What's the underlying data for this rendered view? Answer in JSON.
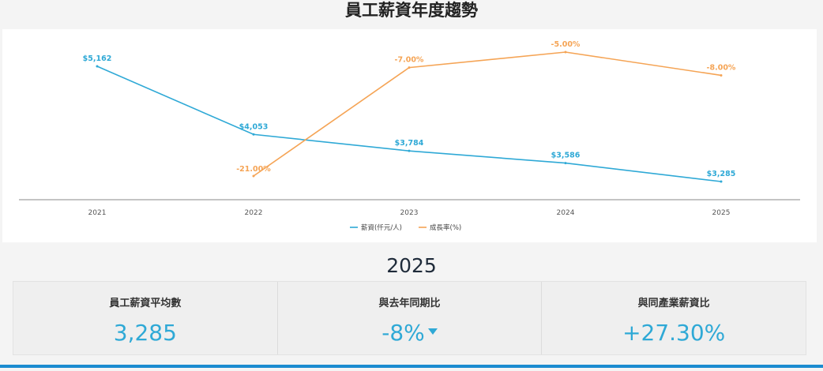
{
  "page": {
    "title": "員工薪資年度趨勢",
    "year": "2025"
  },
  "chart_data": {
    "type": "line",
    "categories": [
      "2021",
      "2022",
      "2023",
      "2024",
      "2025"
    ],
    "series": [
      {
        "name": "薪資(仟元/人)",
        "color": "#2fa9d6",
        "values": [
          5162,
          4053,
          3784,
          3586,
          3285
        ],
        "labels": [
          "$5,162",
          "$4,053",
          "$3,784",
          "$3,586",
          "$3,285"
        ]
      },
      {
        "name": "成長率(%)",
        "color": "#f5a455",
        "values": [
          null,
          -21.0,
          -7.0,
          -5.0,
          -8.0
        ],
        "labels": [
          "",
          "-21.00%",
          "-7.00%",
          "-5.00%",
          "-8.00%"
        ]
      }
    ],
    "salary_range": [
      3000,
      5500
    ],
    "growth_range": [
      -23,
      -4
    ],
    "grid": false,
    "legend_position": "bottom-center"
  },
  "stats": [
    {
      "label": "員工薪資平均數",
      "value": "3,285",
      "trend": ""
    },
    {
      "label": "與去年同期比",
      "value": "-8%",
      "trend": "down"
    },
    {
      "label": "與同產業薪資比",
      "value": "+27.30%",
      "trend": ""
    }
  ]
}
